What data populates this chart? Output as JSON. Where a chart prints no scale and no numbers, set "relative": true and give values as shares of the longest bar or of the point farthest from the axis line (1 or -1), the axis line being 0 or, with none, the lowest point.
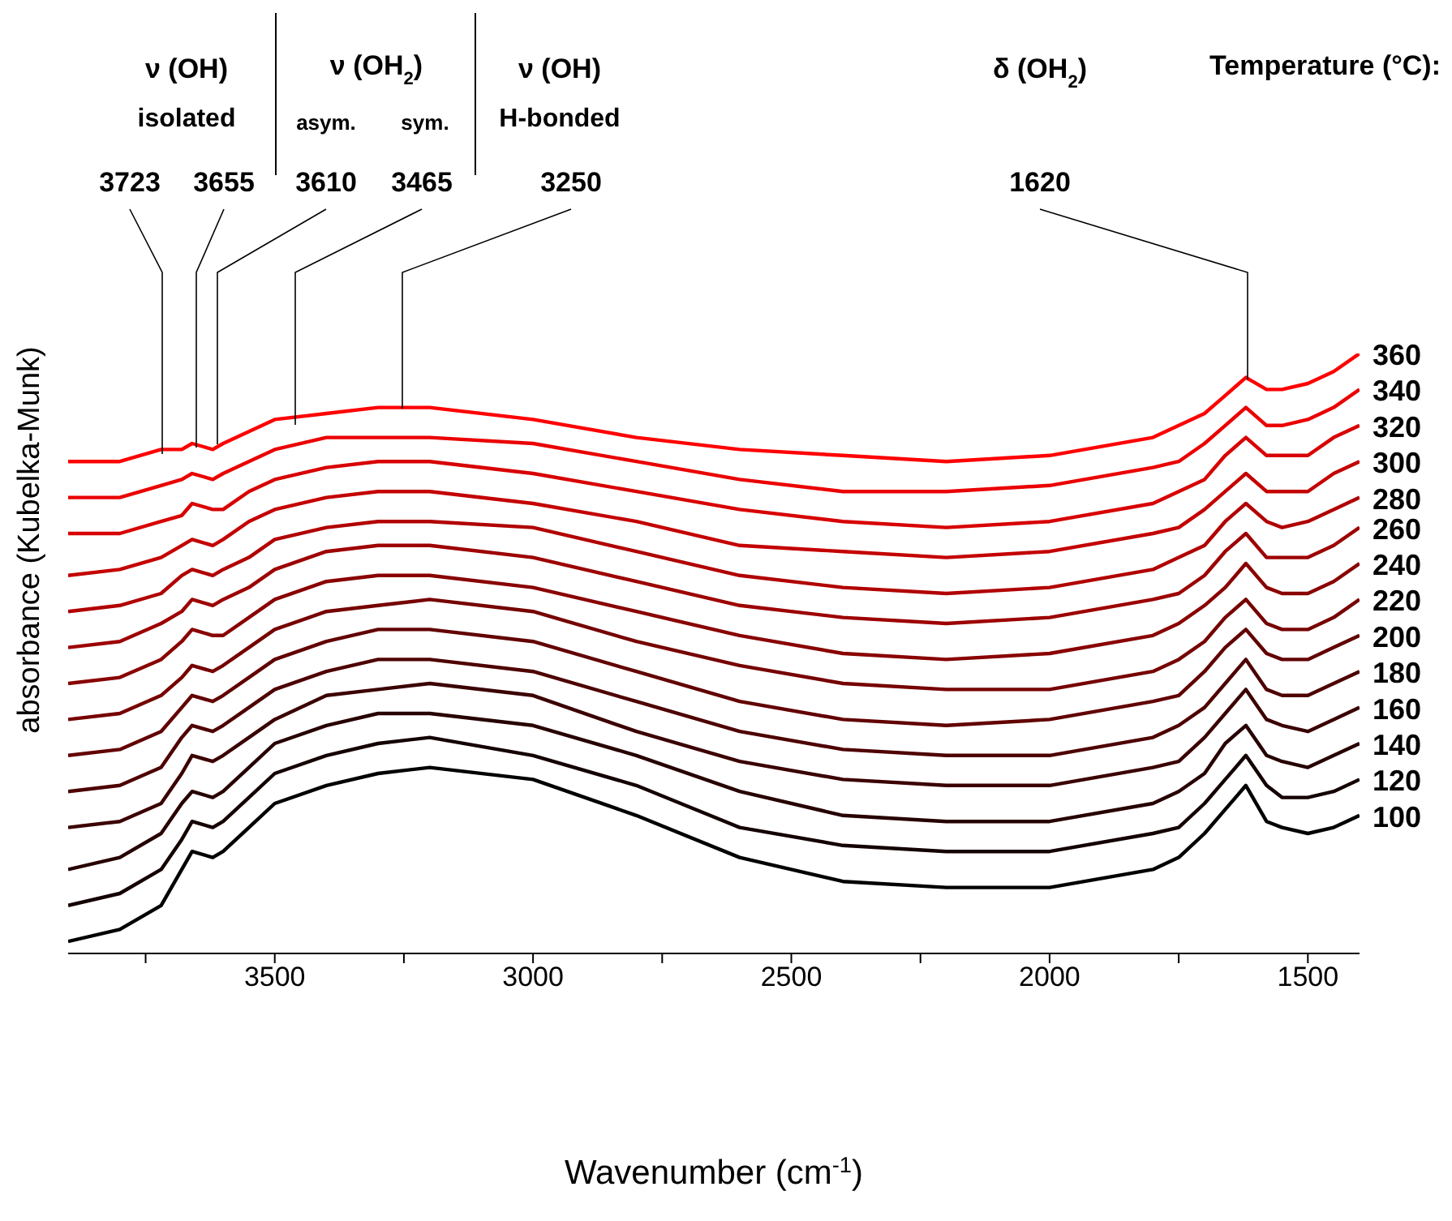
{
  "chart_data": {
    "type": "line",
    "relative": true,
    "xlabel": "Wavenumber (cm$^{-1}$)",
    "ylabel": "absorbance (Kubelka-Munk)",
    "legend_title": "Temperature (°C):",
    "xlim": [
      3900,
      1400
    ],
    "xticks": [
      {
        "value": 3750,
        "label": null
      },
      3500,
      {
        "value": 3250,
        "label": null
      },
      3000,
      {
        "value": 2750,
        "label": null
      },
      2500,
      {
        "value": 2250,
        "label": null
      },
      2000,
      {
        "value": 1750,
        "label": null
      },
      1500
    ],
    "marker": "none",
    "line_style": "solid",
    "annotations": [
      "ν (OH)",
      "isolated",
      "ν (OH$_{2}$)",
      "asym.",
      "sym.",
      "ν (OH)",
      "H-bonded",
      "δ (OH$_{2}$)",
      "3723",
      "3655",
      "3610",
      "3465",
      "3250",
      "1620"
    ],
    "x": [
      3900,
      3800,
      3720,
      3680,
      3660,
      3620,
      3600,
      3550,
      3500,
      3400,
      3300,
      3200,
      3000,
      2800,
      2600,
      2400,
      2200,
      2000,
      1800,
      1750,
      1700,
      1660,
      1620,
      1580,
      1550,
      1500,
      1450,
      1400
    ],
    "series": [
      {
        "name": "100",
        "color": "#000000",
        "values": [
          0.02,
          0.04,
          0.08,
          0.14,
          0.17,
          0.16,
          0.17,
          0.21,
          0.25,
          0.28,
          0.3,
          0.31,
          0.29,
          0.23,
          0.16,
          0.12,
          0.11,
          0.11,
          0.14,
          0.16,
          0.2,
          0.24,
          0.28,
          0.22,
          0.21,
          0.2,
          0.21,
          0.23
        ]
      },
      {
        "name": "120",
        "color": "#140000",
        "values": [
          0.08,
          0.1,
          0.14,
          0.19,
          0.22,
          0.21,
          0.22,
          0.26,
          0.3,
          0.33,
          0.35,
          0.36,
          0.33,
          0.28,
          0.21,
          0.18,
          0.17,
          0.17,
          0.2,
          0.21,
          0.25,
          0.29,
          0.33,
          0.28,
          0.26,
          0.26,
          0.27,
          0.29
        ]
      },
      {
        "name": "140",
        "color": "#270000",
        "values": [
          0.14,
          0.16,
          0.2,
          0.25,
          0.27,
          0.26,
          0.27,
          0.31,
          0.35,
          0.38,
          0.4,
          0.4,
          0.38,
          0.33,
          0.27,
          0.23,
          0.22,
          0.22,
          0.25,
          0.27,
          0.3,
          0.35,
          0.38,
          0.33,
          0.32,
          0.31,
          0.33,
          0.35
        ]
      },
      {
        "name": "160",
        "color": "#3b0000",
        "values": [
          0.21,
          0.22,
          0.25,
          0.3,
          0.33,
          0.32,
          0.33,
          0.36,
          0.39,
          0.43,
          0.44,
          0.45,
          0.43,
          0.37,
          0.32,
          0.29,
          0.28,
          0.28,
          0.31,
          0.32,
          0.36,
          0.4,
          0.44,
          0.39,
          0.38,
          0.37,
          0.39,
          0.41
        ]
      },
      {
        "name": "180",
        "color": "#4e0000",
        "values": [
          0.27,
          0.28,
          0.31,
          0.36,
          0.38,
          0.37,
          0.38,
          0.41,
          0.44,
          0.47,
          0.49,
          0.49,
          0.47,
          0.42,
          0.37,
          0.34,
          0.33,
          0.33,
          0.36,
          0.38,
          0.41,
          0.45,
          0.49,
          0.44,
          0.43,
          0.43,
          0.45,
          0.47
        ]
      },
      {
        "name": "200",
        "color": "#620000",
        "values": [
          0.33,
          0.34,
          0.37,
          0.41,
          0.43,
          0.42,
          0.43,
          0.46,
          0.49,
          0.52,
          0.54,
          0.54,
          0.52,
          0.47,
          0.42,
          0.39,
          0.38,
          0.39,
          0.42,
          0.43,
          0.47,
          0.51,
          0.54,
          0.5,
          0.49,
          0.49,
          0.51,
          0.53
        ]
      },
      {
        "name": "220",
        "color": "#760000",
        "values": [
          0.39,
          0.4,
          0.43,
          0.46,
          0.48,
          0.47,
          0.48,
          0.51,
          0.54,
          0.57,
          0.58,
          0.59,
          0.57,
          0.52,
          0.48,
          0.45,
          0.44,
          0.44,
          0.47,
          0.49,
          0.52,
          0.56,
          0.59,
          0.55,
          0.54,
          0.54,
          0.56,
          0.59
        ]
      },
      {
        "name": "240",
        "color": "#890000",
        "values": [
          0.45,
          0.46,
          0.49,
          0.52,
          0.54,
          0.53,
          0.53,
          0.56,
          0.59,
          0.62,
          0.63,
          0.63,
          0.61,
          0.57,
          0.53,
          0.5,
          0.49,
          0.5,
          0.53,
          0.55,
          0.58,
          0.61,
          0.65,
          0.61,
          0.6,
          0.6,
          0.62,
          0.65
        ]
      },
      {
        "name": "260",
        "color": "#9d0000",
        "values": [
          0.51,
          0.52,
          0.55,
          0.57,
          0.59,
          0.58,
          0.59,
          0.61,
          0.64,
          0.67,
          0.68,
          0.68,
          0.66,
          0.62,
          0.58,
          0.56,
          0.55,
          0.56,
          0.59,
          0.6,
          0.63,
          0.67,
          0.7,
          0.66,
          0.66,
          0.66,
          0.68,
          0.71
        ]
      },
      {
        "name": "280",
        "color": "#b10000",
        "values": [
          0.57,
          0.58,
          0.6,
          0.63,
          0.64,
          0.63,
          0.64,
          0.66,
          0.69,
          0.71,
          0.72,
          0.72,
          0.71,
          0.67,
          0.63,
          0.61,
          0.6,
          0.61,
          0.64,
          0.66,
          0.68,
          0.72,
          0.75,
          0.72,
          0.71,
          0.72,
          0.74,
          0.76
        ]
      },
      {
        "name": "300",
        "color": "#c40000",
        "values": [
          0.63,
          0.64,
          0.66,
          0.68,
          0.69,
          0.68,
          0.69,
          0.72,
          0.74,
          0.76,
          0.77,
          0.77,
          0.75,
          0.72,
          0.68,
          0.67,
          0.66,
          0.67,
          0.7,
          0.71,
          0.74,
          0.77,
          0.8,
          0.77,
          0.77,
          0.77,
          0.8,
          0.82
        ]
      },
      {
        "name": "320",
        "color": "#d80000",
        "values": [
          0.7,
          0.7,
          0.72,
          0.73,
          0.75,
          0.74,
          0.74,
          0.77,
          0.79,
          0.81,
          0.82,
          0.82,
          0.8,
          0.77,
          0.74,
          0.72,
          0.71,
          0.72,
          0.75,
          0.77,
          0.79,
          0.83,
          0.86,
          0.83,
          0.83,
          0.83,
          0.86,
          0.88
        ]
      },
      {
        "name": "340",
        "color": "#eb0000",
        "values": [
          0.76,
          0.76,
          0.78,
          0.79,
          0.8,
          0.79,
          0.8,
          0.82,
          0.84,
          0.86,
          0.86,
          0.86,
          0.85,
          0.82,
          0.79,
          0.77,
          0.77,
          0.78,
          0.81,
          0.82,
          0.85,
          0.88,
          0.91,
          0.88,
          0.88,
          0.89,
          0.91,
          0.94
        ]
      },
      {
        "name": "360",
        "color": "#ff0000",
        "values": [
          0.82,
          0.82,
          0.84,
          0.84,
          0.85,
          0.84,
          0.85,
          0.87,
          0.89,
          0.9,
          0.91,
          0.91,
          0.89,
          0.86,
          0.84,
          0.83,
          0.82,
          0.83,
          0.86,
          0.88,
          0.9,
          0.93,
          0.96,
          0.94,
          0.94,
          0.95,
          0.97,
          1.0
        ]
      }
    ]
  }
}
